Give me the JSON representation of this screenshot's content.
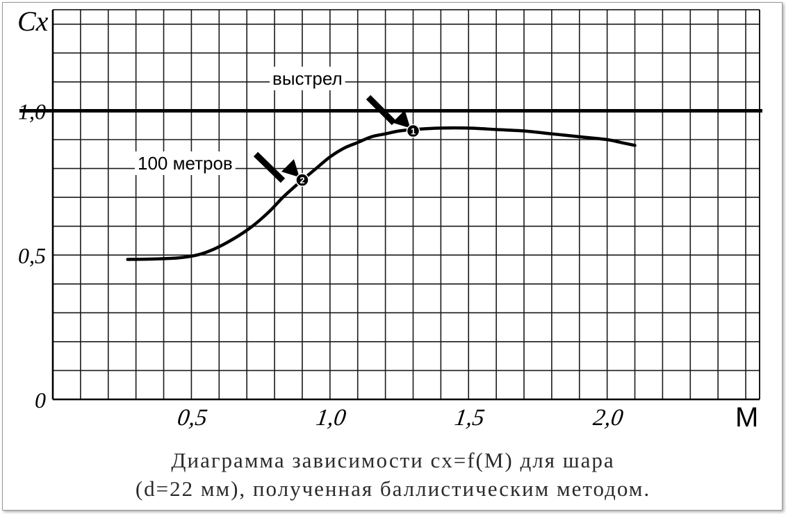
{
  "chart_data": {
    "type": "line",
    "ylabel": "Cx",
    "xlabel": "M",
    "xlim": [
      0,
      2.55
    ],
    "ylim": [
      0,
      1.35
    ],
    "x_ticks": [
      {
        "value": 0.5,
        "label": "0,5"
      },
      {
        "value": 1.0,
        "label": "1,0"
      },
      {
        "value": 1.5,
        "label": "1,5"
      },
      {
        "value": 2.0,
        "label": "2,0"
      }
    ],
    "y_ticks": [
      {
        "value": 0,
        "label": "0"
      },
      {
        "value": 0.5,
        "label": "0,5"
      },
      {
        "value": 1.0,
        "label": "1,0"
      }
    ],
    "grid": true,
    "grid_step_x": 0.1,
    "grid_step_y": 0.1,
    "series": [
      {
        "x": [
          0.27,
          0.35,
          0.45,
          0.52,
          0.58,
          0.65,
          0.72,
          0.78,
          0.83,
          0.87,
          0.9,
          0.95,
          1.0,
          1.05,
          1.1,
          1.15,
          1.2,
          1.25,
          1.3,
          1.4,
          1.5,
          1.6,
          1.7,
          1.8,
          1.9,
          2.0,
          2.05,
          2.1
        ],
        "y": [
          0.485,
          0.486,
          0.49,
          0.5,
          0.52,
          0.555,
          0.6,
          0.65,
          0.7,
          0.735,
          0.76,
          0.8,
          0.84,
          0.87,
          0.89,
          0.91,
          0.92,
          0.93,
          0.935,
          0.94,
          0.94,
          0.935,
          0.93,
          0.92,
          0.91,
          0.9,
          0.89,
          0.88
        ]
      }
    ],
    "reference_line": {
      "y": 1.0
    },
    "annotations": [
      {
        "label": "выстрел",
        "marker": "1",
        "x": 1.3,
        "y": 0.93
      },
      {
        "label": "100 метров",
        "marker": "2",
        "x": 0.9,
        "y": 0.76
      }
    ]
  },
  "caption": {
    "line1": "Диаграмма зависимости cx=f(M) для шара",
    "line2": "(d=22 мм), полученная баллистическим методом."
  },
  "colors": {
    "ink": "#000000",
    "grid": "#1a1a1a",
    "caption": "#2a2a2a"
  }
}
